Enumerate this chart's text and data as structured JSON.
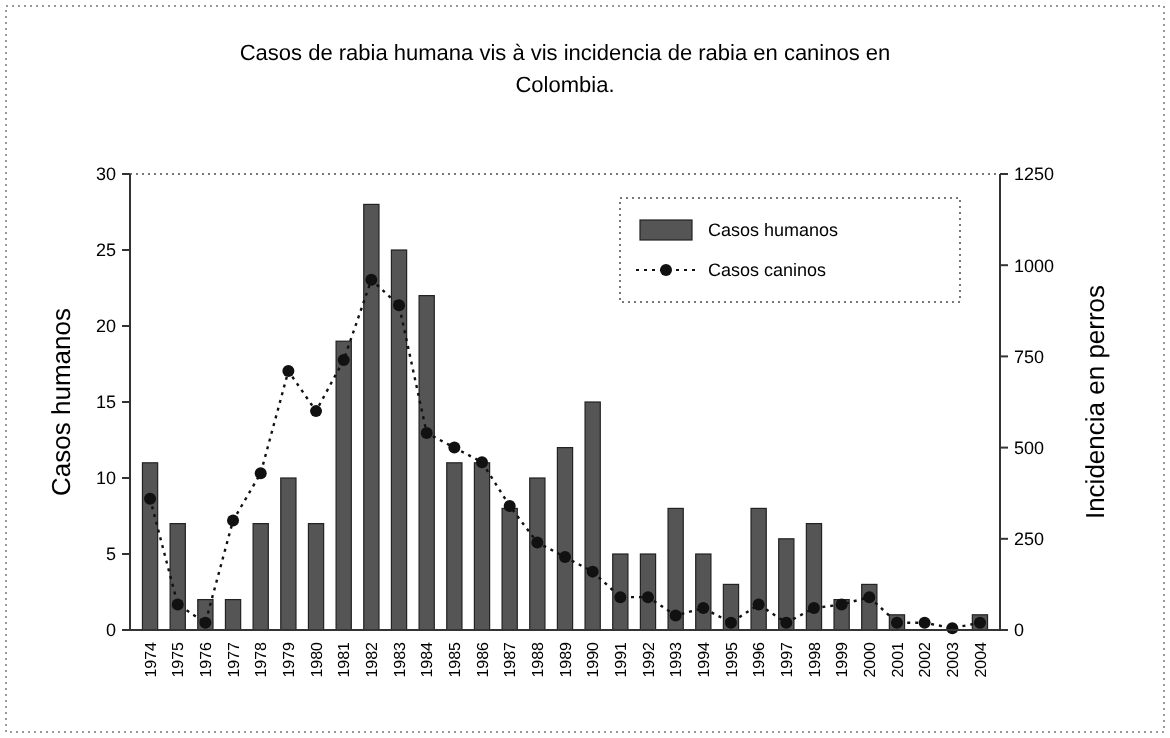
{
  "chart_data": {
    "type": "bar",
    "title": "Casos de rabia humana vis à vis incidencia de rabia en caninos en Colombia.",
    "ylabel": "Casos humanos",
    "y2label": "Incidencia en perros",
    "categories": [
      "1974",
      "1975",
      "1976",
      "1977",
      "1978",
      "1979",
      "1980",
      "1981",
      "1982",
      "1983",
      "1984",
      "1985",
      "1986",
      "1987",
      "1988",
      "1989",
      "1990",
      "1991",
      "1992",
      "1993",
      "1994",
      "1995",
      "1996",
      "1997",
      "1998",
      "1999",
      "2000",
      "2001",
      "2002",
      "2003",
      "2004"
    ],
    "series": [
      {
        "name": "Casos humanos",
        "color": "#555555",
        "values": [
          11,
          7,
          2,
          2,
          7,
          10,
          7,
          19,
          28,
          25,
          22,
          11,
          11,
          8,
          10,
          12,
          15,
          5,
          5,
          8,
          5,
          3,
          8,
          6,
          7,
          2,
          3,
          1,
          0,
          0,
          1
        ]
      },
      {
        "name": "Casos caninos",
        "type": "line",
        "axis": "y2",
        "color": "#111111",
        "marker": "circle",
        "line_style": "dotted",
        "values": [
          360,
          70,
          20,
          300,
          430,
          710,
          600,
          740,
          960,
          890,
          540,
          500,
          460,
          340,
          240,
          200,
          160,
          90,
          90,
          40,
          60,
          20,
          70,
          20,
          60,
          70,
          90,
          20,
          20,
          5,
          20
        ]
      }
    ],
    "ylim": [
      0,
      30
    ],
    "yticks": [
      0,
      5,
      10,
      15,
      20,
      25,
      30
    ],
    "y2lim": [
      0,
      1250
    ],
    "y2ticks": [
      0,
      250,
      500,
      750,
      1000,
      1250
    ],
    "grid": false,
    "legend": "top right"
  }
}
